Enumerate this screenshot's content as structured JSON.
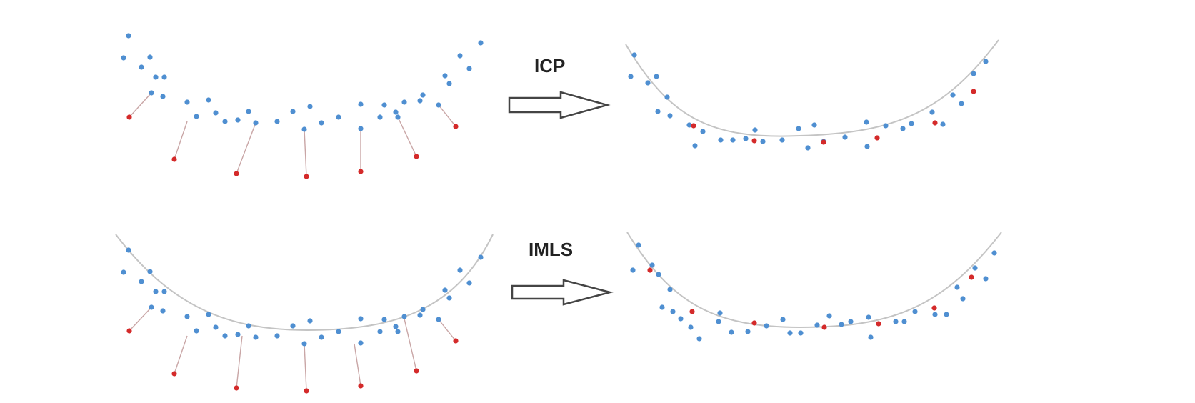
{
  "labels": {
    "top_method": "ICP",
    "bottom_method": "IMLS"
  },
  "colors": {
    "model_point": "#4f8fd1",
    "scan_point": "#d42a2a",
    "correspondence_line": "#c9a6a6",
    "surface_curve": "#c4c4c4",
    "arrow_stroke": "#444444"
  },
  "icons": {
    "transform_arrow": "right-arrow-icon"
  }
}
